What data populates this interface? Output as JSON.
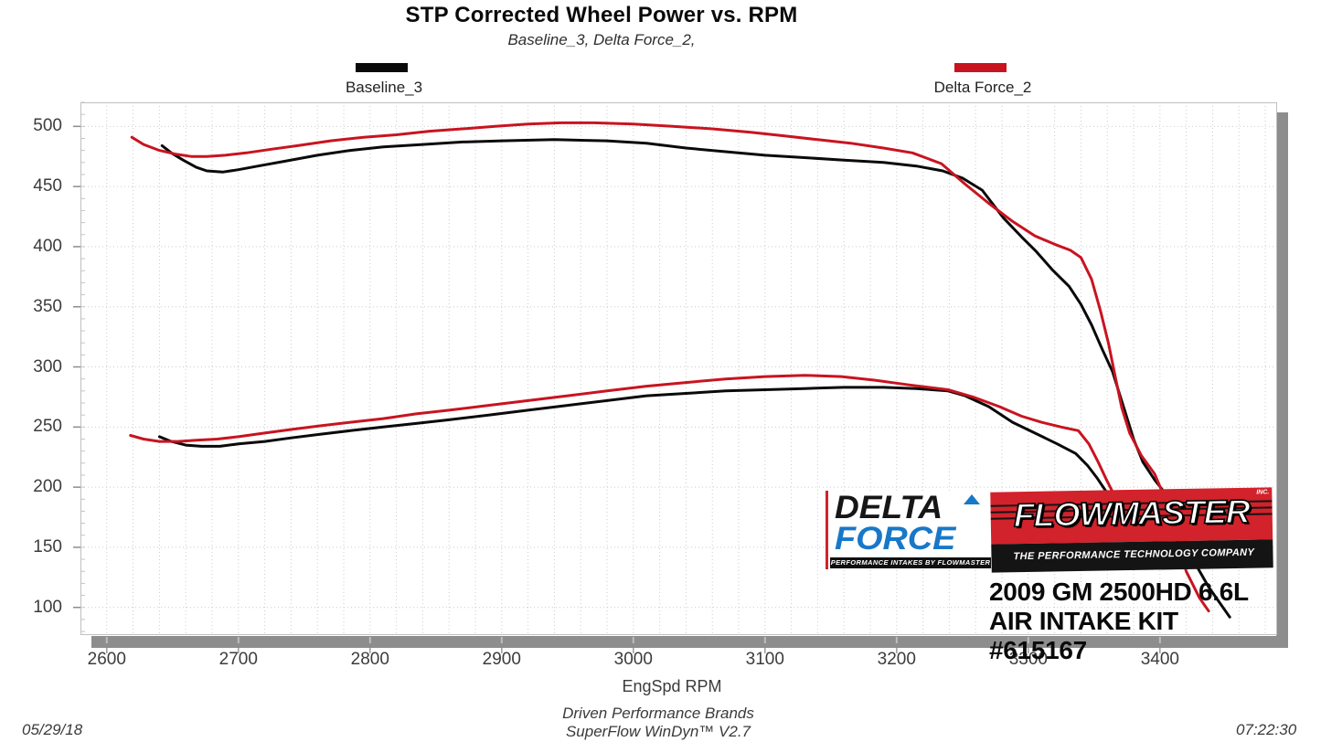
{
  "header": {
    "title": "STP Corrected Wheel Power vs. RPM",
    "subtitle": "Baseline_3, Delta Force_2,"
  },
  "legend": {
    "baseline": {
      "label": "Baseline_3",
      "color": "#0a0a0a"
    },
    "delta": {
      "label": "Delta Force_2",
      "color": "#c81420"
    }
  },
  "axes": {
    "x": {
      "label": "EngSpd  RPM",
      "min": 2580,
      "max": 3489,
      "ticks": [
        2600,
        2700,
        2800,
        2900,
        3000,
        3100,
        3200,
        3300,
        3400
      ],
      "minor_step": 20
    },
    "y": {
      "min": 77,
      "max": 520,
      "ticks": [
        500,
        450,
        400,
        350,
        300,
        250,
        200,
        150,
        100
      ],
      "major_step": 50,
      "minor_step": 10
    }
  },
  "chart_data": {
    "type": "line",
    "title": "STP Corrected Wheel Power vs. RPM",
    "xlabel": "EngSpd RPM",
    "ylabel": "STP Corrected Wheel Power",
    "x_range": [
      2580,
      3489
    ],
    "y_range": [
      77,
      520
    ],
    "grid": {
      "x_minor": 20,
      "y_major": 50,
      "style": "dotted"
    },
    "legend_position": "top",
    "series": [
      {
        "name": "Baseline_3 (power)",
        "color": "#0a0a0a",
        "points": [
          [
            2642,
            484
          ],
          [
            2649,
            478
          ],
          [
            2658,
            472
          ],
          [
            2668,
            466
          ],
          [
            2676,
            463
          ],
          [
            2688,
            462
          ],
          [
            2700,
            464
          ],
          [
            2715,
            467
          ],
          [
            2735,
            471
          ],
          [
            2760,
            476
          ],
          [
            2785,
            480
          ],
          [
            2810,
            483
          ],
          [
            2840,
            485
          ],
          [
            2870,
            487
          ],
          [
            2900,
            488
          ],
          [
            2940,
            489
          ],
          [
            2980,
            488
          ],
          [
            3010,
            486
          ],
          [
            3040,
            482
          ],
          [
            3070,
            479
          ],
          [
            3100,
            476
          ],
          [
            3130,
            474
          ],
          [
            3160,
            472
          ],
          [
            3190,
            470
          ],
          [
            3215,
            467
          ],
          [
            3235,
            463
          ],
          [
            3250,
            457
          ],
          [
            3265,
            447
          ],
          [
            3281,
            424
          ],
          [
            3295,
            408
          ],
          [
            3306,
            396
          ],
          [
            3318,
            381
          ],
          [
            3331,
            367
          ],
          [
            3340,
            352
          ],
          [
            3348,
            335
          ],
          [
            3356,
            315
          ],
          [
            3364,
            296
          ],
          [
            3372,
            268
          ],
          [
            3380,
            240
          ],
          [
            3387,
            221
          ],
          [
            3396,
            206
          ],
          [
            3406,
            192
          ],
          [
            3416,
            163
          ],
          [
            3426,
            138
          ],
          [
            3437,
            117
          ],
          [
            3453,
            92
          ]
        ]
      },
      {
        "name": "Delta Force_2 (power)",
        "color": "#c81420",
        "points": [
          [
            2619,
            491
          ],
          [
            2628,
            485
          ],
          [
            2640,
            480
          ],
          [
            2652,
            477
          ],
          [
            2664,
            475
          ],
          [
            2676,
            475
          ],
          [
            2690,
            476
          ],
          [
            2706,
            478
          ],
          [
            2725,
            481
          ],
          [
            2745,
            484
          ],
          [
            2770,
            488
          ],
          [
            2795,
            491
          ],
          [
            2820,
            493
          ],
          [
            2845,
            496
          ],
          [
            2870,
            498
          ],
          [
            2895,
            500
          ],
          [
            2920,
            502
          ],
          [
            2945,
            503
          ],
          [
            2970,
            503
          ],
          [
            3000,
            502
          ],
          [
            3030,
            500
          ],
          [
            3060,
            498
          ],
          [
            3090,
            495
          ],
          [
            3115,
            492
          ],
          [
            3140,
            489
          ],
          [
            3165,
            486
          ],
          [
            3190,
            482
          ],
          [
            3212,
            478
          ],
          [
            3234,
            469
          ],
          [
            3252,
            452
          ],
          [
            3270,
            436
          ],
          [
            3288,
            421
          ],
          [
            3305,
            409
          ],
          [
            3320,
            402
          ],
          [
            3332,
            397
          ],
          [
            3340,
            391
          ],
          [
            3348,
            373
          ],
          [
            3355,
            346
          ],
          [
            3361,
            319
          ],
          [
            3366,
            292
          ],
          [
            3371,
            266
          ],
          [
            3377,
            245
          ],
          [
            3386,
            226
          ],
          [
            3396,
            211
          ],
          [
            3404,
            190
          ],
          [
            3412,
            160
          ],
          [
            3420,
            130
          ],
          [
            3430,
            108
          ],
          [
            3437,
            97
          ]
        ]
      },
      {
        "name": "Baseline_3 (secondary)",
        "color": "#0a0a0a",
        "points": [
          [
            2640,
            242
          ],
          [
            2649,
            238
          ],
          [
            2660,
            235
          ],
          [
            2672,
            234
          ],
          [
            2686,
            234
          ],
          [
            2700,
            236
          ],
          [
            2720,
            238
          ],
          [
            2740,
            241
          ],
          [
            2762,
            244
          ],
          [
            2785,
            247
          ],
          [
            2810,
            250
          ],
          [
            2835,
            253
          ],
          [
            2860,
            256
          ],
          [
            2890,
            260
          ],
          [
            2920,
            264
          ],
          [
            2950,
            268
          ],
          [
            2980,
            272
          ],
          [
            3010,
            276
          ],
          [
            3040,
            278
          ],
          [
            3070,
            280
          ],
          [
            3100,
            281
          ],
          [
            3130,
            282
          ],
          [
            3160,
            283
          ],
          [
            3190,
            283
          ],
          [
            3215,
            282
          ],
          [
            3239,
            280
          ],
          [
            3252,
            276
          ],
          [
            3270,
            267
          ],
          [
            3288,
            254
          ],
          [
            3305,
            245
          ],
          [
            3322,
            236
          ],
          [
            3336,
            228
          ],
          [
            3345,
            218
          ],
          [
            3352,
            208
          ],
          [
            3360,
            195
          ]
        ]
      },
      {
        "name": "Delta Force_2 (secondary)",
        "color": "#c81420",
        "points": [
          [
            2618,
            243
          ],
          [
            2628,
            240
          ],
          [
            2640,
            238
          ],
          [
            2654,
            238
          ],
          [
            2668,
            239
          ],
          [
            2684,
            240
          ],
          [
            2700,
            242
          ],
          [
            2720,
            245
          ],
          [
            2740,
            248
          ],
          [
            2762,
            251
          ],
          [
            2785,
            254
          ],
          [
            2810,
            257
          ],
          [
            2835,
            261
          ],
          [
            2860,
            264
          ],
          [
            2890,
            268
          ],
          [
            2920,
            272
          ],
          [
            2950,
            276
          ],
          [
            2980,
            280
          ],
          [
            3010,
            284
          ],
          [
            3040,
            287
          ],
          [
            3070,
            290
          ],
          [
            3100,
            292
          ],
          [
            3130,
            293
          ],
          [
            3158,
            292
          ],
          [
            3183,
            289
          ],
          [
            3210,
            285
          ],
          [
            3239,
            281
          ],
          [
            3258,
            275
          ],
          [
            3278,
            267
          ],
          [
            3295,
            259
          ],
          [
            3310,
            254
          ],
          [
            3325,
            250
          ],
          [
            3338,
            247
          ],
          [
            3346,
            236
          ],
          [
            3353,
            221
          ],
          [
            3359,
            207
          ],
          [
            3365,
            194
          ]
        ]
      }
    ]
  },
  "branding": {
    "delta_force": {
      "word1": "DELTA",
      "word2": "FORCE",
      "tagline": "PERFORMANCE INTAKES BY FLOWMASTER"
    },
    "flowmaster": {
      "name": "FLOWMASTER",
      "inc": "INC.",
      "tagline": "THE PERFORMANCE TECHNOLOGY COMPANY"
    },
    "vehicle_line1": "2009 GM 2500HD 6.6L",
    "vehicle_line2": "AIR INTAKE KIT #615167"
  },
  "footer": {
    "date": "05/29/18",
    "brand": "Driven Performance Brands",
    "software": "SuperFlow WinDyn™ V2.7",
    "time": "07:22:30"
  }
}
